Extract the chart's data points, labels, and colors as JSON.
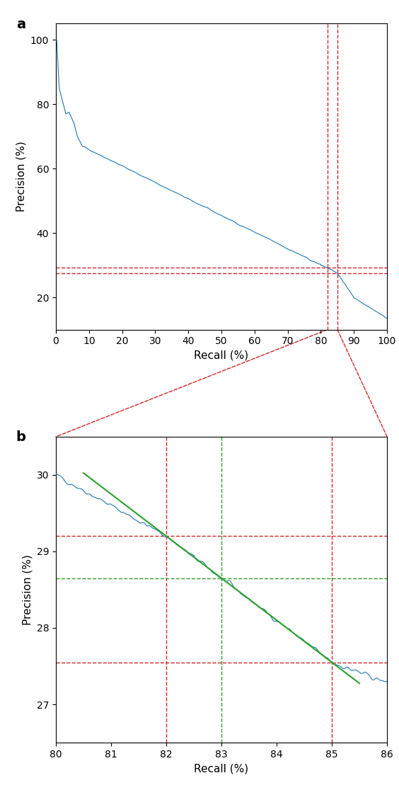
{
  "panel_a": {
    "xlabel": "Recall (%)",
    "ylabel": "Precision (%)",
    "label": "a",
    "xlim": [
      0,
      100
    ],
    "ylim": [
      10,
      105
    ],
    "yticks": [
      20,
      40,
      60,
      80,
      100
    ],
    "xticks": [
      0,
      10,
      20,
      30,
      40,
      50,
      60,
      70,
      80,
      90,
      100
    ],
    "red_hlines": [
      29.2,
      27.55
    ],
    "red_vlines": [
      82.0,
      85.0
    ],
    "curve_color": "#1f77b4",
    "red_color": "#d62728"
  },
  "panel_b": {
    "xlabel": "Recall (%)",
    "ylabel": "Precision (%)",
    "label": "b",
    "xlim": [
      80,
      86
    ],
    "ylim": [
      26.5,
      30.5
    ],
    "yticks": [
      27,
      28,
      29,
      30
    ],
    "xticks": [
      80,
      81,
      82,
      83,
      84,
      85,
      86
    ],
    "red_hlines": [
      29.2,
      27.55
    ],
    "red_vlines": [
      82.0,
      85.0
    ],
    "green_hline": 28.65,
    "green_vline": 83.0,
    "green_line_x": [
      82.0,
      85.0
    ],
    "green_line_y": [
      29.2,
      27.55
    ],
    "curve_color": "#1f77b4",
    "red_color": "#d62728",
    "green_color": "#2ca02c"
  }
}
